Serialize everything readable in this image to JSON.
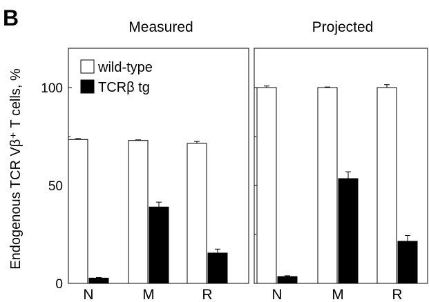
{
  "panel_letter": "B",
  "ylabel": "Endogenous TCR Vβ⁺ T cells, %",
  "legend": [
    {
      "label": "wild-type",
      "color": "#ffffff"
    },
    {
      "label": "TCRβ tg",
      "color": "#000000"
    }
  ],
  "chart_data": [
    {
      "type": "bar",
      "title": "Measured",
      "categories": [
        "N",
        "M",
        "R"
      ],
      "ylim": [
        0,
        100
      ],
      "yticks": [
        0,
        50,
        100
      ],
      "series": [
        {
          "name": "wild-type",
          "color": "#ffffff",
          "values": [
            73.5,
            73,
            71.5
          ],
          "errors": [
            0.5,
            0.3,
            1.0
          ]
        },
        {
          "name": "TCRβ tg",
          "color": "#000000",
          "values": [
            2.7,
            39,
            15.5
          ],
          "errors": [
            0.3,
            2.5,
            2.0
          ]
        }
      ],
      "legend_position": "top-left"
    },
    {
      "type": "bar",
      "title": "Projected",
      "categories": [
        "N",
        "M",
        "R"
      ],
      "ylim": [
        0,
        100
      ],
      "yticks": [
        0,
        50,
        100
      ],
      "series": [
        {
          "name": "wild-type",
          "color": "#ffffff",
          "values": [
            100,
            100,
            100
          ],
          "errors": [
            0.8,
            0.3,
            1.5
          ]
        },
        {
          "name": "TCRβ tg",
          "color": "#000000",
          "values": [
            3.5,
            53.5,
            21.5
          ],
          "errors": [
            0.4,
            3.5,
            3.0
          ]
        }
      ]
    }
  ]
}
